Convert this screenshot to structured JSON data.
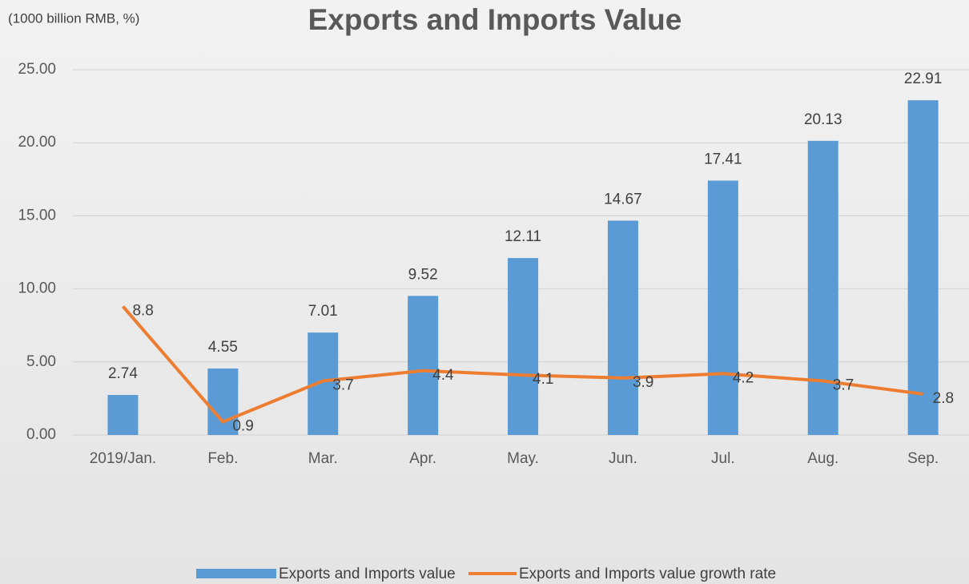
{
  "chart_data": {
    "type": "bar",
    "title": "Exports and Imports Value",
    "unit_label": "(1000 billion RMB, %)",
    "categories": [
      "2019/Jan.",
      "Feb.",
      "Mar.",
      "Apr.",
      "May.",
      "Jun.",
      "Jul.",
      "Aug.",
      "Sep."
    ],
    "series": [
      {
        "name": "Exports and Imports value",
        "type": "bar",
        "color": "#5b9bd5",
        "values": [
          2.74,
          4.55,
          7.01,
          9.52,
          12.11,
          14.67,
          17.41,
          20.13,
          22.91
        ]
      },
      {
        "name": "Exports and Imports value growth rate",
        "type": "line",
        "color": "#ed7d31",
        "values": [
          8.8,
          0.9,
          3.7,
          4.4,
          4.1,
          3.9,
          4.2,
          3.7,
          2.8
        ]
      }
    ],
    "ylim": [
      0,
      25
    ],
    "yticks": [
      {
        "value": 0,
        "label": "0.00"
      },
      {
        "value": 5,
        "label": "5.00"
      },
      {
        "value": 10,
        "label": "10.00"
      },
      {
        "value": 15,
        "label": "15.00"
      },
      {
        "value": 20,
        "label": "20.00"
      },
      {
        "value": 25,
        "label": "25.00"
      }
    ],
    "grid": true,
    "legend": "bottom"
  }
}
